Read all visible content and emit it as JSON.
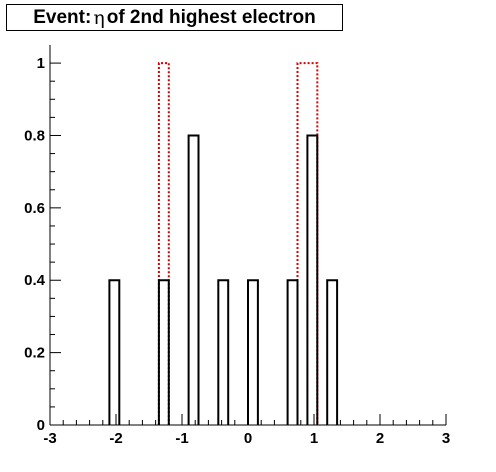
{
  "title": {
    "prefix": "Event: ",
    "symbol": "η",
    "suffix": " of 2nd highest electron"
  },
  "chart_data": {
    "type": "bar",
    "title": "Event: η of 2nd highest electron",
    "xlabel": "",
    "ylabel": "",
    "xlim": [
      -3,
      3
    ],
    "ylim": [
      0,
      1.05
    ],
    "grid": false,
    "legend": "none",
    "bin_width": 0.15,
    "x_ticks": [
      -3,
      -2,
      -1,
      0,
      1,
      2,
      3
    ],
    "y_ticks": [
      0,
      0.2,
      0.4,
      0.6,
      0.8,
      1
    ],
    "x_tick_labels": [
      "-3",
      "-2",
      "-1",
      "0",
      "1",
      "2",
      "3"
    ],
    "y_tick_labels": [
      "0",
      "0.2",
      "0.4",
      "0.6",
      "0.8",
      "1"
    ],
    "series": [
      {
        "style": "solid",
        "color": "#000000",
        "bins": [
          {
            "x0": -2.1,
            "x1": -1.95,
            "value": 0.4
          },
          {
            "x0": -1.35,
            "x1": -1.2,
            "value": 0.4
          },
          {
            "x0": -0.9,
            "x1": -0.75,
            "value": 0.8
          },
          {
            "x0": -0.45,
            "x1": -0.3,
            "value": 0.4
          },
          {
            "x0": 0.0,
            "x1": 0.15,
            "value": 0.4
          },
          {
            "x0": 0.6,
            "x1": 0.75,
            "value": 0.4
          },
          {
            "x0": 0.9,
            "x1": 1.05,
            "value": 0.8
          },
          {
            "x0": 1.2,
            "x1": 1.35,
            "value": 0.4
          }
        ]
      },
      {
        "style": "dotted",
        "color": "#dd0000",
        "bins": [
          {
            "x0": -1.35,
            "x1": -1.2,
            "value": 1.0
          },
          {
            "x0": 0.75,
            "x1": 1.05,
            "value": 1.0
          }
        ]
      }
    ]
  }
}
